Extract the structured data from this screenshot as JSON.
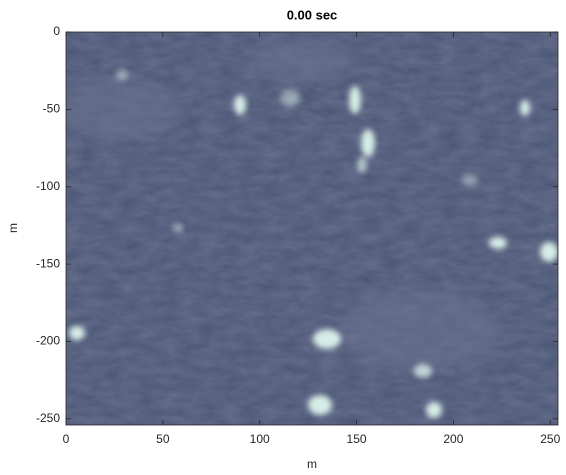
{
  "chart_data": {
    "type": "image",
    "title": "0.00 sec",
    "x_label": "m",
    "y_label": "m",
    "xlim": [
      0,
      254
    ],
    "xticks": [
      0,
      50,
      100,
      150,
      200,
      250
    ],
    "ylim": [
      -254,
      0
    ],
    "yticks": [
      -250,
      -200,
      -150,
      -100,
      -50,
      0
    ]
  }
}
